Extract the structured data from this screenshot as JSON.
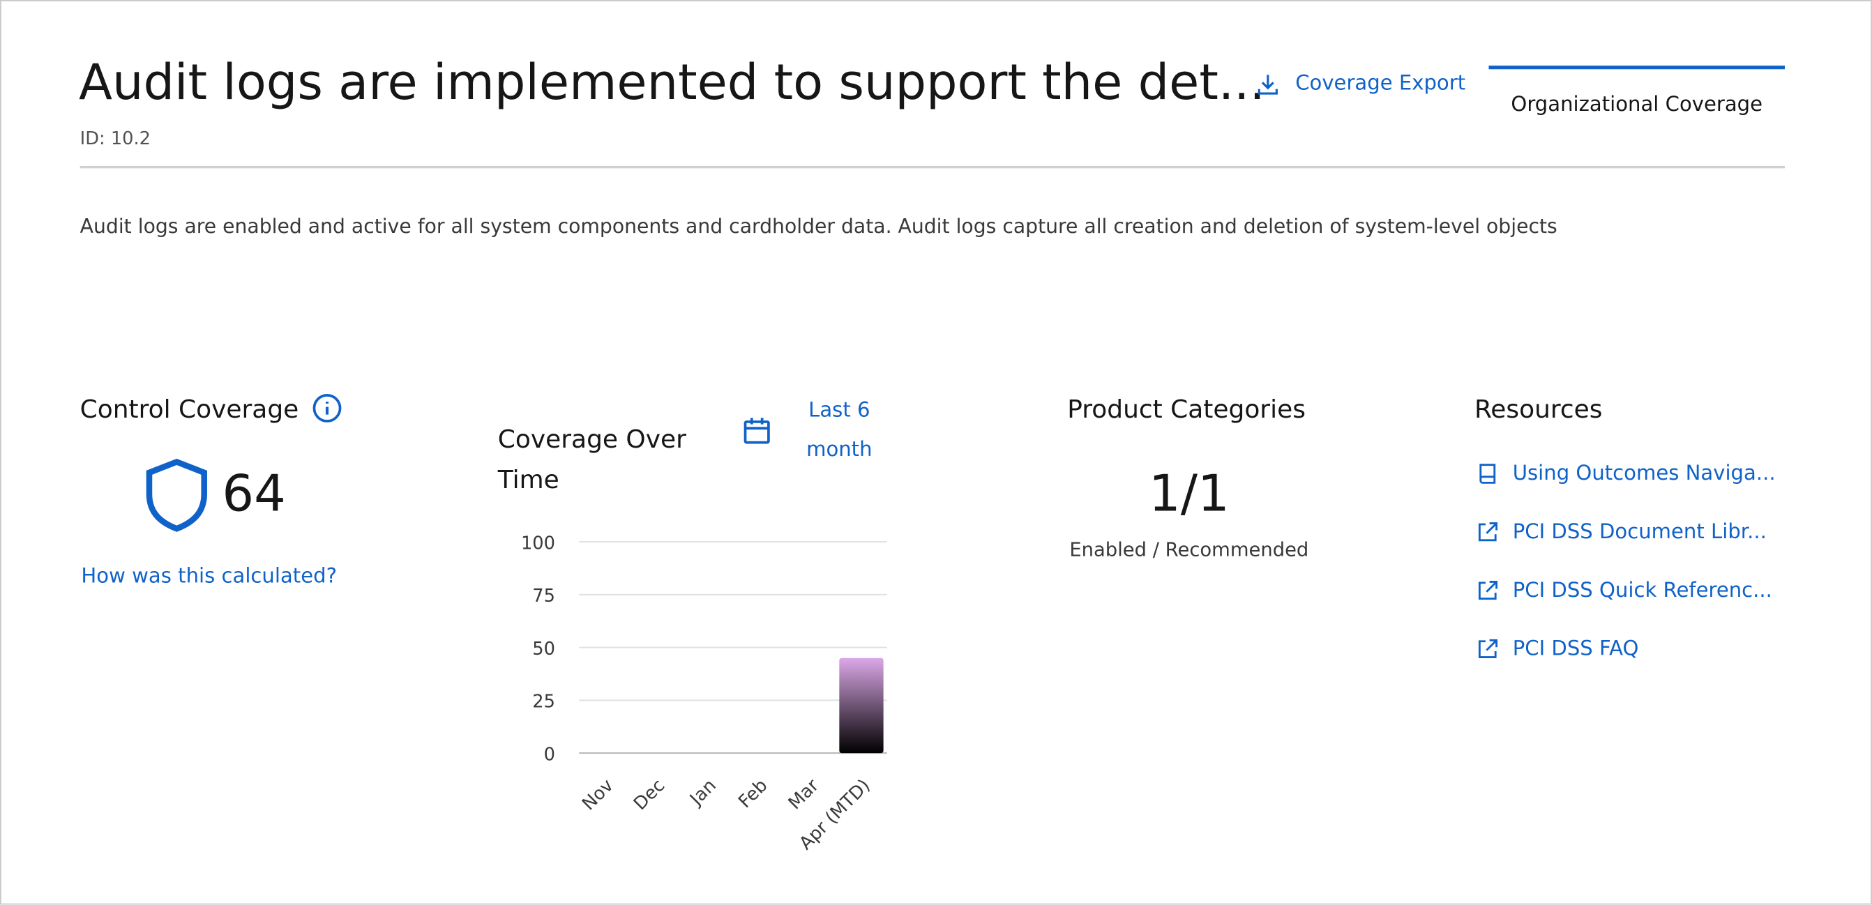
{
  "header": {
    "title": "Audit logs are implemented to support the det...",
    "id": "ID: 10.2",
    "export": "Coverage Export",
    "tab": "Organizational Coverage"
  },
  "description": "Audit logs are enabled and active for all system components and cardholder data. Audit logs capture all creation and deletion of system-level objects",
  "control_coverage": {
    "title": "Control Coverage",
    "value": 64,
    "link": "How was this calculated?"
  },
  "chart_data": {
    "type": "bar",
    "title": "Coverage Over Time",
    "range_picker": "Last 6 month",
    "categories": [
      "Nov",
      "Dec",
      "Jan",
      "Feb",
      "Mar",
      "Apr (MTD)"
    ],
    "values": [
      0,
      0,
      0,
      0,
      0,
      45
    ],
    "colors": [
      "#dca8e8",
      "#000000"
    ],
    "ylim": [
      0,
      100
    ],
    "yticks": [
      0,
      25,
      50,
      75,
      100
    ],
    "grid": true
  },
  "product_categories": {
    "title": "Product Categories",
    "value": "1/1",
    "label": "Enabled / Recommended"
  },
  "resources": {
    "title": "Resources",
    "links": [
      "Using Outcomes Naviga...",
      "PCI DSS Document Libr...",
      "PCI DSS Quick Referenc...",
      "PCI DSS FAQ"
    ]
  }
}
